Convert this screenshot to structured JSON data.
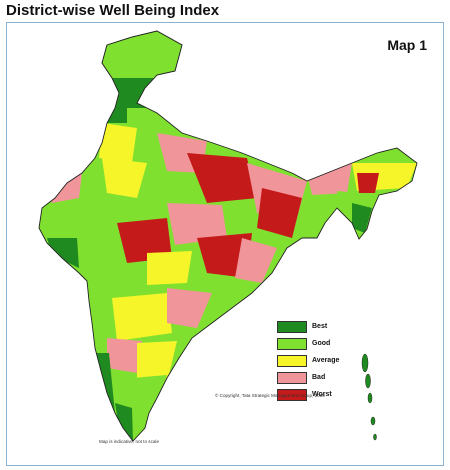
{
  "title": "District-wise Well Being Index",
  "map_label": "Map 1",
  "legend": [
    {
      "label": "Best",
      "color": "#1f8a1f"
    },
    {
      "label": "Good",
      "color": "#7fe030"
    },
    {
      "label": "Average",
      "color": "#f5f52a"
    },
    {
      "label": "Bad",
      "color": "#f0969a"
    },
    {
      "label": "Worst",
      "color": "#c51a1a"
    }
  ],
  "copyright": "© Copyright, Tata Strategic Management Group, 2010",
  "scale_note": "Map is indicative, not to scale"
}
